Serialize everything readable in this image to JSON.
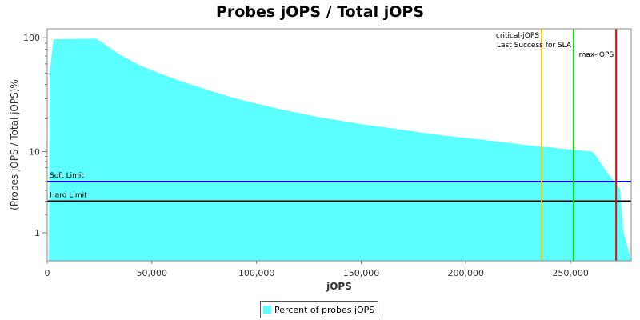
{
  "chart_data": {
    "type": "area",
    "title": "Probes jOPS / Total jOPS",
    "xlabel": "jOPS",
    "ylabel": "(Probes jOPS / Total jOPS)%",
    "xlim": [
      0,
      279000
    ],
    "ylim": [
      0,
      119
    ],
    "y_scale": "log",
    "x_ticks": [
      0,
      50000,
      100000,
      150000,
      200000,
      250000
    ],
    "x_tick_labels": [
      "0",
      "50,000",
      "100,000",
      "150,000",
      "200,000",
      "250,000"
    ],
    "y_ticks": [
      1,
      10,
      100
    ],
    "y_tick_labels": [
      "1",
      "10",
      "100"
    ],
    "grid": false,
    "legend_placement": "bottom",
    "series": [
      {
        "name": "Percent of probes jOPS",
        "color": "#5bffff",
        "x": [
          800,
          1150,
          3060,
          23300,
          26400,
          29050,
          34800,
          44300,
          53900,
          63500,
          73000,
          82600,
          92100,
          111200,
          130400,
          149500,
          168600,
          187700,
          206800,
          225900,
          245000,
          260300,
          262200,
          268000,
          273700,
          275200,
          279000
        ],
        "y": [
          0,
          50.4,
          97,
          98.4,
          90.9,
          84,
          71.7,
          58.2,
          49.6,
          42.9,
          37.7,
          33.1,
          29.5,
          24.3,
          20.6,
          18.0,
          16.0,
          14.2,
          13.0,
          11.7,
          10.7,
          10.0,
          9.1,
          6.0,
          4.2,
          1.1,
          0
        ]
      }
    ],
    "horizontal_lines": [
      {
        "label": "Soft Limit",
        "value": 5,
        "color": "#0000ff"
      },
      {
        "label": "Hard Limit",
        "value": 3,
        "color": "#000000"
      }
    ],
    "vertical_lines": [
      {
        "label": "critical-jOPS",
        "value": 236200,
        "color": "#ffc800"
      },
      {
        "label": "Last Success for SLA",
        "value": 251500,
        "color": "#00e000"
      },
      {
        "label": "max-jOPS",
        "value": 271800,
        "color": "#ff0000"
      }
    ]
  }
}
